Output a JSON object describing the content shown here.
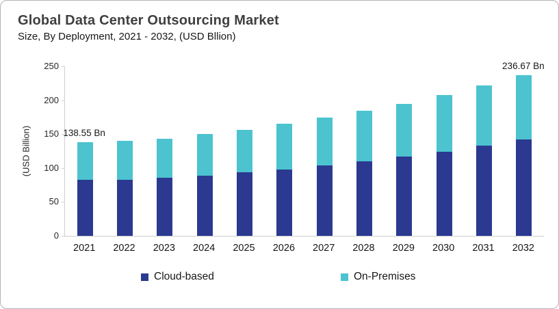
{
  "header": {
    "title": "Global Data Center Outsourcing Market",
    "subtitle": "Size, By Deployment, 2021 - 2032, (USD Bllion)"
  },
  "chart_data": {
    "type": "bar",
    "stacked": true,
    "title": "Global Data Center Outsourcing Market",
    "subtitle": "Size, By Deployment, 2021 - 2032, (USD Bllion)",
    "ylabel": "(USD Billion)",
    "xlabel": "",
    "ylim": [
      0,
      250
    ],
    "yticks": [
      0,
      50,
      100,
      150,
      200,
      250
    ],
    "grid": false,
    "legend_position": "bottom",
    "categories": [
      "2021",
      "2022",
      "2023",
      "2024",
      "2025",
      "2026",
      "2027",
      "2028",
      "2029",
      "2030",
      "2031",
      "2032"
    ],
    "series": [
      {
        "name": "Cloud-based",
        "color": "#2B3990",
        "values": [
          82.5,
          82.5,
          85.5,
          88.5,
          93.5,
          97.5,
          103.5,
          110,
          116.5,
          124,
          133,
          142
        ]
      },
      {
        "name": "On-Premises",
        "color": "#4CC3CF",
        "values": [
          56.05,
          57.3,
          58.0,
          61.5,
          63.0,
          67.5,
          70.5,
          74.0,
          78.5,
          84.0,
          89.0,
          94.67
        ]
      }
    ],
    "totals": [
      138.55,
      139.8,
      143.5,
      150.0,
      156.5,
      165.0,
      174.0,
      184.0,
      195.0,
      208.0,
      222.0,
      236.67
    ],
    "annotations": [
      {
        "text": "138.55 Bn",
        "category": "2021"
      },
      {
        "text": "236.67 Bn",
        "category": "2032"
      }
    ]
  },
  "colors": {
    "cloud_based": "#2B3990",
    "on_premises": "#4CC3CF",
    "title_text": "#3f3f3f",
    "body_text": "#161616",
    "axis_line": "#cfcfcf",
    "card_border": "#b3b3b3",
    "background": "#ffffff"
  }
}
